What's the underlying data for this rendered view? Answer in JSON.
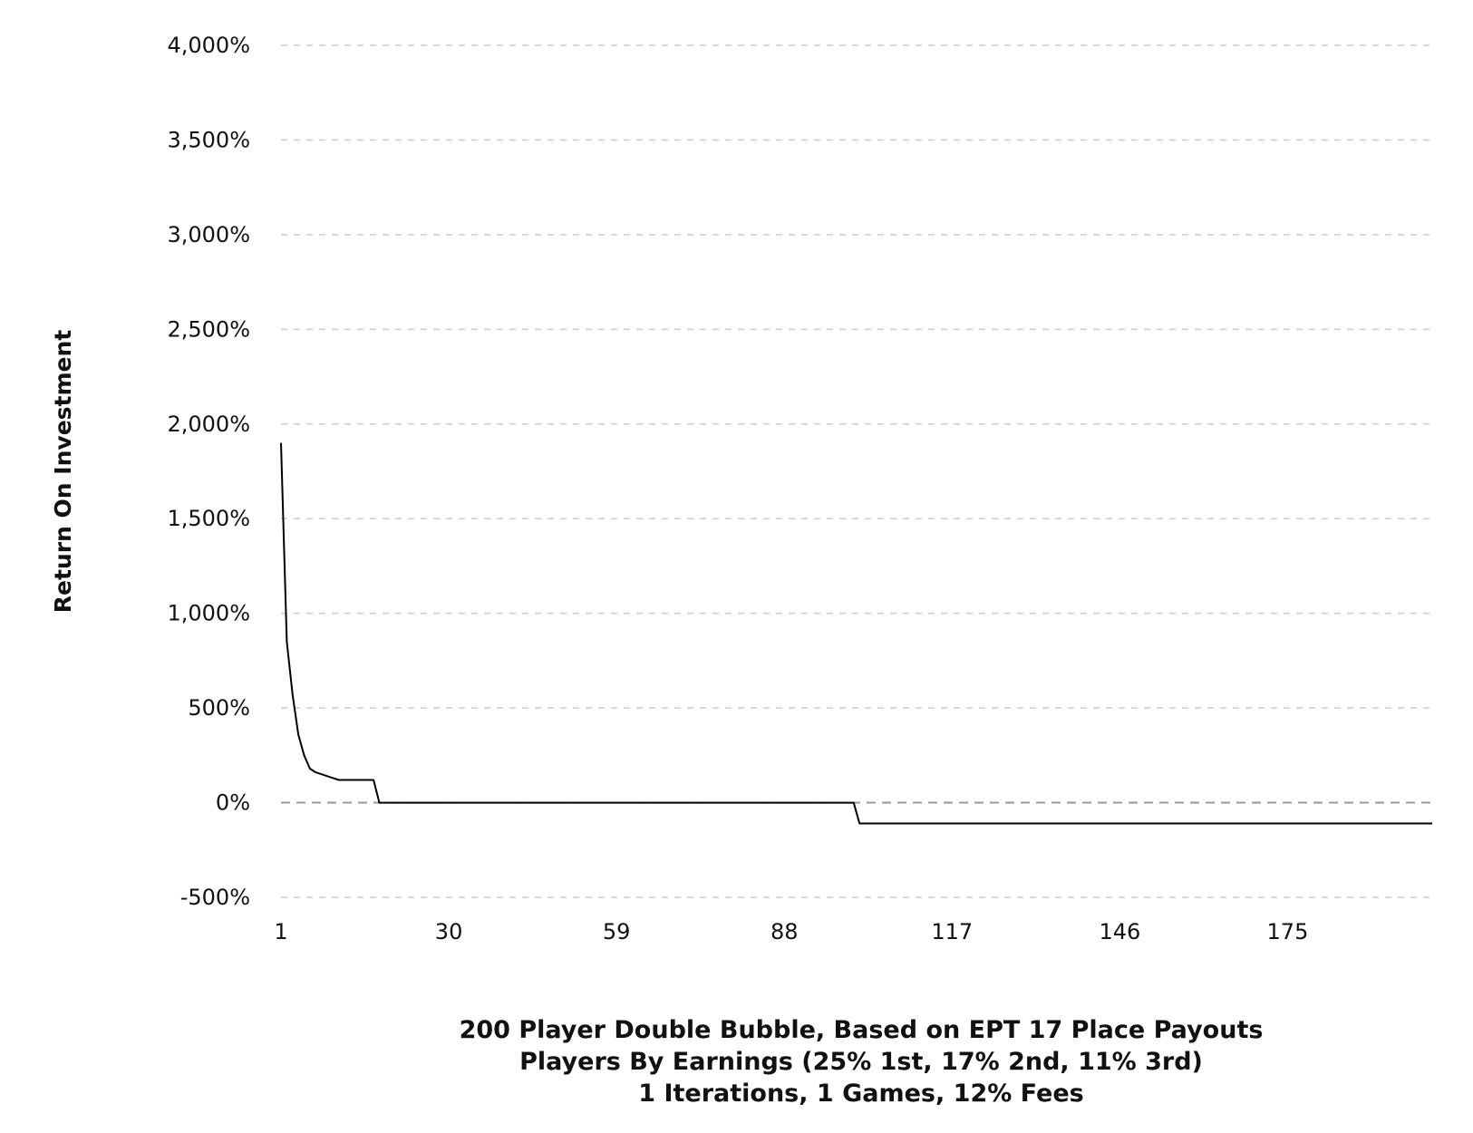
{
  "chart_data": {
    "type": "line",
    "title": "",
    "ylabel": "Return On Investment",
    "xlabel_lines": [
      "200 Player Double Bubble, Based on EPT 17 Place Payouts",
      "Players By Earnings (25% 1st, 17% 2nd, 11% 3rd)",
      "1 Iterations, 1 Games, 12% Fees"
    ],
    "xlim": [
      1,
      200
    ],
    "ylim": [
      -500,
      4000
    ],
    "x_ticks": [
      1,
      30,
      59,
      88,
      117,
      146,
      175
    ],
    "y_ticks": [
      {
        "value": 4000,
        "label": "4,000%"
      },
      {
        "value": 3500,
        "label": "3,500%"
      },
      {
        "value": 3000,
        "label": "3,000%"
      },
      {
        "value": 2500,
        "label": "2,500%"
      },
      {
        "value": 2000,
        "label": "2,000%"
      },
      {
        "value": 1500,
        "label": "1,500%"
      },
      {
        "value": 1000,
        "label": "1,000%"
      },
      {
        "value": 500,
        "label": "500%"
      },
      {
        "value": 0,
        "label": "0%"
      },
      {
        "value": -500,
        "label": "-500%"
      }
    ],
    "grid": "horizontal-dashed",
    "line_color": "#000000",
    "grid_color": "#cccccc",
    "zero_line_color": "#999999",
    "series": [
      {
        "x": [
          1,
          2,
          3,
          4,
          5,
          6,
          7,
          8,
          9,
          10,
          11,
          12,
          13,
          14,
          15,
          16,
          17,
          18,
          100,
          101,
          200
        ],
        "y": [
          1900,
          850,
          570,
          360,
          250,
          180,
          160,
          150,
          140,
          130,
          120,
          120,
          120,
          120,
          120,
          120,
          120,
          0,
          0,
          -110,
          -110
        ]
      }
    ]
  }
}
